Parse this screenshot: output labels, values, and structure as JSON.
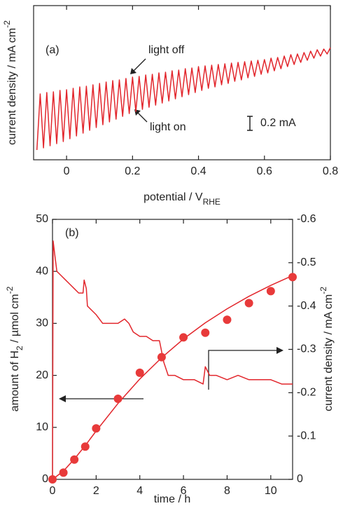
{
  "chart_data": [
    {
      "type": "line",
      "label": "(a)",
      "x_label": [
        {
          "text": "potential / V"
        },
        {
          "text": "RHE",
          "script": "sub"
        }
      ],
      "y_label": [
        {
          "text": "current density / mA cm"
        },
        {
          "text": "-2",
          "script": "sup"
        }
      ],
      "annotations": [
        "light off",
        "light on"
      ],
      "scale_bar": {
        "value": 0.2,
        "label": "0.2 mA"
      },
      "xlim": [
        -0.1,
        0.8
      ],
      "ylim": [
        -2.2,
        0
      ],
      "xticks": [
        0,
        0.2,
        0.4,
        0.6,
        0.8
      ],
      "x": [
        -0.09,
        -0.08,
        -0.07,
        -0.06,
        -0.05,
        -0.04,
        -0.03,
        -0.02,
        -0.01,
        0,
        0.01,
        0.02,
        0.03,
        0.04,
        0.05,
        0.06,
        0.07,
        0.08,
        0.09,
        0.1,
        0.11,
        0.12,
        0.13,
        0.14,
        0.15,
        0.16,
        0.17,
        0.18,
        0.19,
        0.2,
        0.21,
        0.22,
        0.23,
        0.24,
        0.25,
        0.26,
        0.27,
        0.28,
        0.29,
        0.3,
        0.31,
        0.32,
        0.33,
        0.34,
        0.35,
        0.36,
        0.37,
        0.38,
        0.39,
        0.4,
        0.41,
        0.42,
        0.43,
        0.44,
        0.45,
        0.46,
        0.47,
        0.48,
        0.49,
        0.5,
        0.51,
        0.52,
        0.53,
        0.54,
        0.55,
        0.56,
        0.57,
        0.58,
        0.59,
        0.6,
        0.61,
        0.62,
        0.63,
        0.64,
        0.65,
        0.66,
        0.67,
        0.68,
        0.69,
        0.7,
        0.71,
        0.72,
        0.73,
        0.74,
        0.75,
        0.76,
        0.77,
        0.78,
        0.79,
        0.8
      ],
      "series": [
        {
          "type": "line",
          "color": "#e2262c",
          "values": [
            -2.06,
            -1.26,
            -2.03,
            -1.24,
            -2.0,
            -1.23,
            -1.97,
            -1.21,
            -1.94,
            -1.2,
            -1.9,
            -1.18,
            -1.86,
            -1.16,
            -1.82,
            -1.15,
            -1.78,
            -1.13,
            -1.74,
            -1.11,
            -1.7,
            -1.09,
            -1.66,
            -1.07,
            -1.62,
            -1.06,
            -1.58,
            -1.04,
            -1.54,
            -1.02,
            -1.51,
            -1.01,
            -1.48,
            -0.99,
            -1.45,
            -0.98,
            -1.42,
            -0.96,
            -1.39,
            -0.95,
            -1.36,
            -0.93,
            -1.33,
            -0.92,
            -1.3,
            -0.9,
            -1.27,
            -0.89,
            -1.24,
            -0.87,
            -1.21,
            -0.86,
            -1.18,
            -0.85,
            -1.16,
            -0.84,
            -1.13,
            -0.83,
            -1.11,
            -0.82,
            -1.08,
            -0.81,
            -1.06,
            -0.8,
            -1.03,
            -0.79,
            -1.01,
            -0.78,
            -0.98,
            -0.77,
            -0.96,
            -0.75,
            -0.93,
            -0.74,
            -0.9,
            -0.72,
            -0.87,
            -0.7,
            -0.84,
            -0.69,
            -0.81,
            -0.67,
            -0.78,
            -0.65,
            -0.75,
            -0.63,
            -0.72,
            -0.62,
            -0.69,
            -0.6
          ]
        }
      ]
    },
    {
      "type": "combo",
      "label": "(b)",
      "x_label": [
        {
          "text": "time / h"
        }
      ],
      "y_label": [
        {
          "text": "amount of H"
        },
        {
          "text": "2",
          "script": "sub"
        },
        {
          "text": " / µmol cm"
        },
        {
          "text": "-2",
          "script": "sup"
        }
      ],
      "y2_label": [
        {
          "text": "current density / mA cm"
        },
        {
          "text": "-2",
          "script": "sup"
        }
      ],
      "xlim": [
        0,
        11
      ],
      "ylim": [
        0,
        50
      ],
      "y2lim": [
        0,
        -0.6
      ],
      "xticks": [
        0,
        2,
        4,
        6,
        8,
        10
      ],
      "yticks": [
        0,
        10,
        20,
        30,
        40,
        50
      ],
      "y2ticks": [
        0,
        -0.1,
        -0.2,
        -0.3,
        -0.4,
        -0.5,
        -0.6
      ],
      "series": [
        {
          "type": "line",
          "axis": "y2",
          "color": "#e2262c",
          "x": [
            0,
            0.03,
            0.1,
            0.2,
            0.4,
            0.6,
            0.8,
            1.0,
            1.2,
            1.4,
            1.45,
            1.55,
            1.6,
            1.8,
            2.0,
            2.3,
            2.6,
            3.0,
            3.3,
            3.5,
            3.7,
            4.0,
            4.3,
            4.6,
            4.9,
            5.1,
            5.3,
            5.6,
            6.0,
            6.5,
            6.9,
            7.0,
            7.2,
            7.5,
            8.0,
            8.5,
            9.0,
            9.5,
            10.0,
            10.5,
            11.0
          ],
          "values": [
            0,
            -0.55,
            -0.52,
            -0.48,
            -0.47,
            -0.46,
            -0.45,
            -0.44,
            -0.43,
            -0.43,
            -0.46,
            -0.44,
            -0.4,
            -0.39,
            -0.38,
            -0.36,
            -0.36,
            -0.36,
            -0.37,
            -0.36,
            -0.34,
            -0.33,
            -0.33,
            -0.32,
            -0.32,
            -0.27,
            -0.24,
            -0.24,
            -0.23,
            -0.23,
            -0.22,
            -0.26,
            -0.24,
            -0.24,
            -0.23,
            -0.24,
            -0.23,
            -0.23,
            -0.23,
            -0.22,
            -0.22
          ]
        },
        {
          "type": "line",
          "color": "#e2262c",
          "x": [
            0,
            0.5,
            1,
            1.5,
            2,
            3,
            4,
            5,
            6,
            7,
            8,
            9,
            10,
            11
          ],
          "values": [
            0,
            1.6,
            3.9,
            6.5,
            9.3,
            14.6,
            19.3,
            23.4,
            27,
            30.1,
            32.8,
            35.2,
            37.3,
            39.2
          ]
        },
        {
          "type": "scatter",
          "color": "#e83a3a",
          "x": [
            0,
            0.5,
            1,
            1.5,
            2,
            3,
            4,
            5,
            6,
            7,
            8,
            9,
            10,
            11
          ],
          "values": [
            0,
            1.3,
            3.8,
            6.3,
            9.8,
            15.5,
            20.5,
            23.5,
            27.3,
            28.2,
            30.7,
            33.9,
            36.2,
            38.9
          ]
        }
      ]
    }
  ]
}
